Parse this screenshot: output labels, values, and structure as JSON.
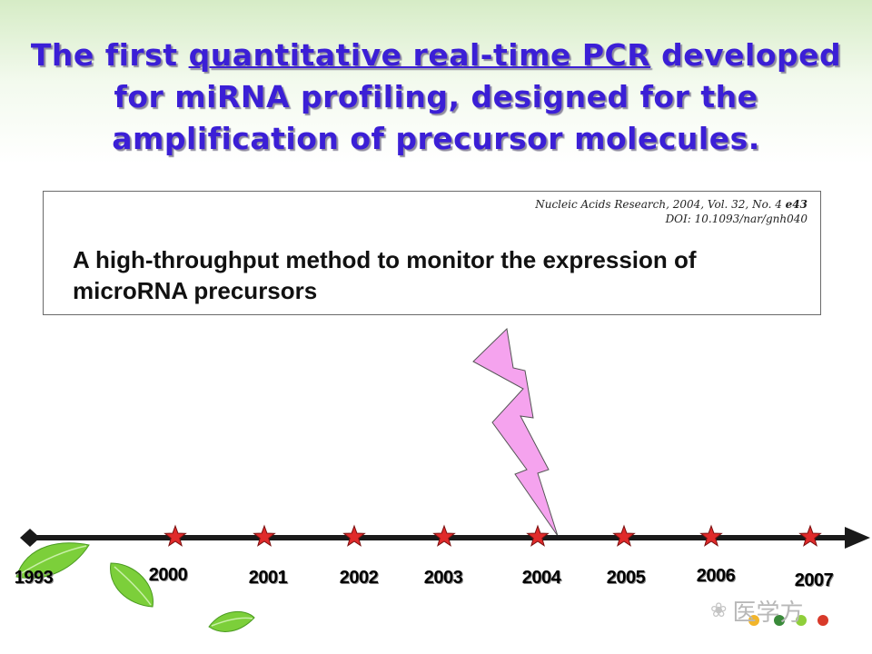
{
  "title": {
    "part1": "The first ",
    "highlight": "quantitative real-time PCR",
    "part2": " developed for miRNA profiling, designed for the amplification of precursor molecules."
  },
  "paper": {
    "citation_line1_prefix": "Nucleic Acids Research, 2004, Vol. 32, No. 4 ",
    "citation_line1_article": "e43",
    "citation_line2": "DOI: 10.1093/nar/gnh040",
    "title": "A high-throughput method to monitor the expression of microRNA precursors"
  },
  "timeline": {
    "years": [
      "1993",
      "2000",
      "2001",
      "2002",
      "2003",
      "2004",
      "2005",
      "2006",
      "2007"
    ],
    "highlighted_year": "2004",
    "axis_color": "#1a1a1a",
    "star_color": "#e02a2a",
    "bolt_color": "#f5a3ee"
  },
  "watermark": {
    "icon": "wechat-icon",
    "text": "医学方"
  }
}
